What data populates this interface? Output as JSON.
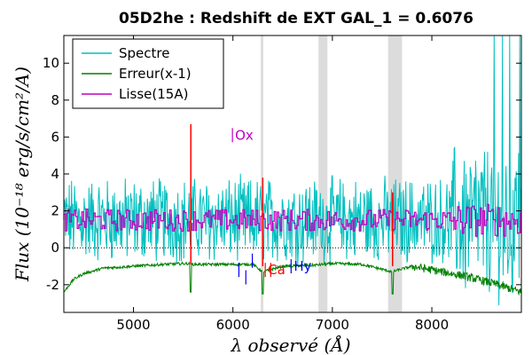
{
  "chart_data": {
    "type": "line",
    "title": "05D2he : Redshift de EXT GAL_1 = 0.6076",
    "xlabel": "λ observé (Å)",
    "ylabel": "Flux (10⁻¹⁸ erg/s/cm²/A)",
    "xlim": [
      4300,
      8900
    ],
    "ylim": [
      -3.5,
      11.5
    ],
    "xticks": [
      5000,
      6000,
      7000,
      8000
    ],
    "yticks": [
      -2,
      0,
      2,
      4,
      6,
      8,
      10
    ],
    "grid": false,
    "zero_line": true,
    "legend_position": "top-left",
    "series": [
      {
        "name": "Spectre",
        "color": "#00bfbf",
        "noise_amplitude": 2.0,
        "baseline": 1.5
      },
      {
        "name": "Erreur(x-1)",
        "color": "#008000",
        "x": [
          4300,
          4400,
          4500,
          4700,
          5000,
          5300,
          5550,
          5600,
          5900,
          6200,
          6300,
          6500,
          6800,
          7000,
          7300,
          7600,
          7800,
          8000,
          8300,
          8600,
          8900
        ],
        "values": [
          -2.4,
          -1.7,
          -1.4,
          -1.1,
          -1.0,
          -0.9,
          -0.85,
          -0.9,
          -0.9,
          -0.9,
          -1.3,
          -1.0,
          -0.95,
          -0.85,
          -0.9,
          -1.3,
          -1.0,
          -1.2,
          -1.5,
          -1.9,
          -2.4
        ]
      },
      {
        "name": "Lisse(15A)",
        "color": "#bf00bf",
        "noise_amplitude": 0.6,
        "baseline": 1.5
      }
    ],
    "sky_lines": [
      {
        "x": 5577,
        "peak": 6.7,
        "trough": -0.9
      },
      {
        "x": 6300,
        "peak": 3.8,
        "trough": -1.0
      },
      {
        "x": 7605,
        "peak": 3.0,
        "trough": -1.0
      }
    ],
    "shaded_bands": [
      [
        6280,
        6305
      ],
      [
        6860,
        6950
      ],
      [
        7560,
        7700
      ]
    ],
    "line_markers": [
      {
        "label": "Ox",
        "x": 5995,
        "y": 6.1,
        "color": "#bf00bf"
      },
      {
        "label": "",
        "x": 6060,
        "y": -1.2,
        "color": "#0000ff"
      },
      {
        "label": "",
        "x": 6130,
        "y": -1.6,
        "color": "#0000ff"
      },
      {
        "label": "",
        "x": 6195,
        "y": -0.7,
        "color": "#0000ff"
      },
      {
        "label": "Ca",
        "x": 6325,
        "y": -1.2,
        "color": "#ff0000"
      },
      {
        "label": "",
        "x": 6380,
        "y": -1.2,
        "color": "#ff0000"
      },
      {
        "label": "Hy",
        "x": 6585,
        "y": -1.0,
        "color": "#0000ff"
      }
    ]
  }
}
